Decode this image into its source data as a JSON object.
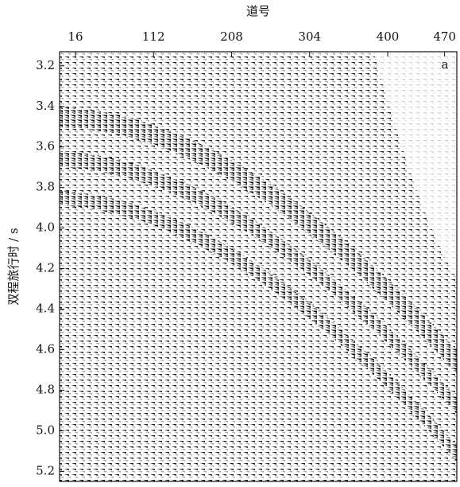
{
  "chart_data": {
    "type": "seismic",
    "title": "道号",
    "ylabel": "双程旅行时 / s",
    "annotation": "a",
    "xlim": [
      -3.5,
      485
    ],
    "xticks": [
      16,
      112,
      208,
      304,
      400,
      470
    ],
    "ylim": [
      3.13,
      5.25
    ],
    "y_inverted": true,
    "yticks": [
      3.2,
      3.4,
      3.6,
      3.8,
      {
        "value": 4,
        "label": "4.0"
      },
      4.2,
      4.4,
      4.6,
      4.8,
      {
        "value": 5,
        "label": "5.0"
      },
      5.2
    ],
    "color": "#111111"
  }
}
